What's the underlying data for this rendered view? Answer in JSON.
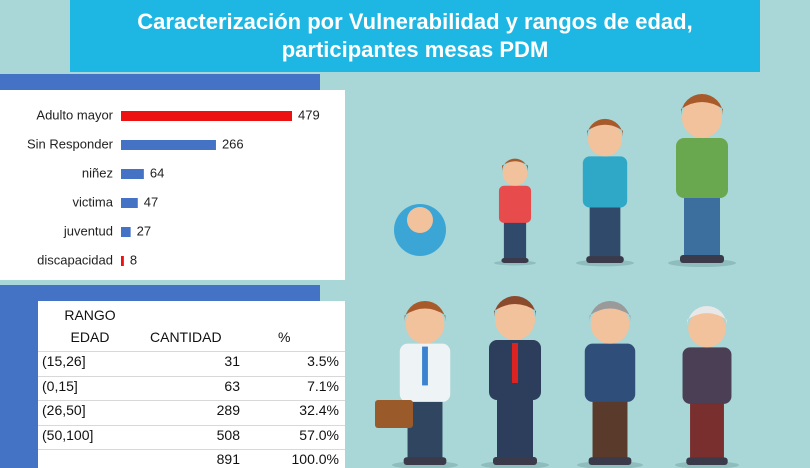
{
  "header": {
    "title": "Caracterización por Vulnerabilidad y rangos de edad, participantes mesas PDM"
  },
  "chart_data": {
    "type": "bar",
    "orientation": "horizontal",
    "categories": [
      "Adulto mayor",
      "Sin Responder",
      "niñez",
      "victima",
      "juventud",
      "discapacidad"
    ],
    "values": [
      479,
      266,
      64,
      47,
      27,
      8
    ],
    "colors": [
      "#ee1111",
      "#4472c4",
      "#4472c4",
      "#4472c4",
      "#4472c4",
      "#ee1111"
    ]
  },
  "table": {
    "columns": [
      "RANGO EDAD",
      "CANTIDAD",
      "%"
    ],
    "rows": [
      [
        "(15,26]",
        31,
        "3.5%"
      ],
      [
        "(0,15]",
        63,
        "7.1%"
      ],
      [
        "(26,50]",
        289,
        "32.4%"
      ],
      [
        "(50,100]",
        508,
        "57.0%"
      ],
      [
        null,
        891,
        "100.0%"
      ]
    ]
  }
}
